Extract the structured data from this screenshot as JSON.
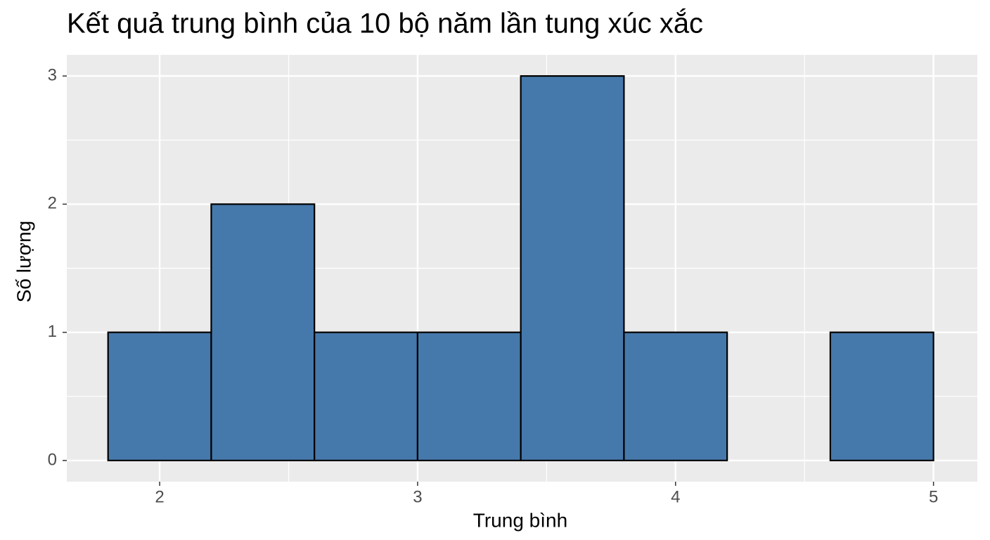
{
  "chart_data": {
    "type": "histogram",
    "title": "Kết quả trung bình của 10 bộ năm lần tung xúc xắc",
    "x_label": "Trung bình",
    "y_label": "Số lượng",
    "bins": [
      1.8,
      2.2,
      2.6,
      3.0,
      3.4,
      3.8,
      4.2,
      4.6,
      5.0
    ],
    "values": [
      1,
      2,
      1,
      1,
      3,
      1,
      0,
      1
    ],
    "color": "#4679ab",
    "edge_color": "#000000",
    "xlim": [
      1.64,
      5.17
    ],
    "xticks": [
      2,
      3,
      4,
      5
    ],
    "x_minor_ticks": [
      2.5,
      3.5,
      4.5
    ],
    "ylim": [
      -0.165,
      3.165
    ],
    "yticks": [
      0,
      1,
      2,
      3
    ],
    "y_minor_ticks": [
      0.5,
      1.5,
      2.5
    ],
    "grid": true,
    "panel_color": "#ebebeb"
  }
}
